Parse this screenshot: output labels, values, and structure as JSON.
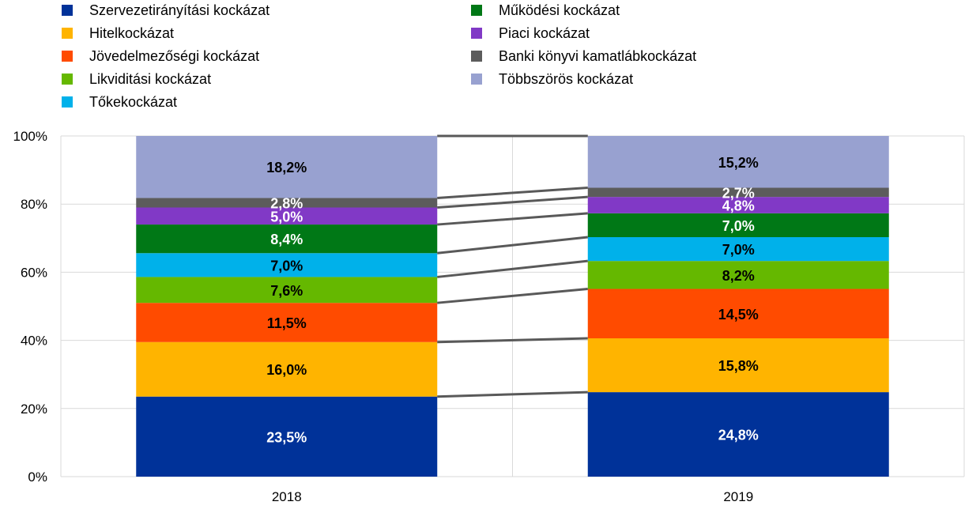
{
  "chart_data": {
    "type": "bar",
    "stacked": true,
    "title": "",
    "xlabel": "",
    "ylabel": "",
    "ylim": [
      0,
      100
    ],
    "categories": [
      "2018",
      "2019"
    ],
    "yticks": [
      "0%",
      "20%",
      "40%",
      "60%",
      "80%",
      "100%"
    ],
    "legend_position": "top",
    "series": [
      {
        "name": "Szervezetirányítási kockázat",
        "color": "#003299",
        "values": [
          23.5,
          24.8
        ],
        "labels": [
          "23,5%",
          "24,8%"
        ],
        "label_color": "#ffffff"
      },
      {
        "name": "Hitelkockázat",
        "color": "#FFB400",
        "values": [
          16.0,
          15.8
        ],
        "labels": [
          "16,0%",
          "15,8%"
        ],
        "label_color": "#000000"
      },
      {
        "name": "Jövedelmezőségi kockázat",
        "color": "#FF4B00",
        "values": [
          11.5,
          14.5
        ],
        "labels": [
          "11,5%",
          "14,5%"
        ],
        "label_color": "#000000"
      },
      {
        "name": "Likviditási kockázat",
        "color": "#65B800",
        "values": [
          7.6,
          8.2
        ],
        "labels": [
          "7,6%",
          "8,2%"
        ],
        "label_color": "#000000"
      },
      {
        "name": "Tőkekockázat",
        "color": "#00B1EA",
        "values": [
          7.0,
          7.0
        ],
        "labels": [
          "7,0%",
          "7,0%"
        ],
        "label_color": "#000000"
      },
      {
        "name": "Működési kockázat",
        "color": "#007816",
        "values": [
          8.4,
          7.0
        ],
        "labels": [
          "8,4%",
          "7,0%"
        ],
        "label_color": "#ffffff"
      },
      {
        "name": "Piaci kockázat",
        "color": "#8139C6",
        "values": [
          5.0,
          4.8
        ],
        "labels": [
          "5,0%",
          "4,8%"
        ],
        "label_color": "#ffffff"
      },
      {
        "name": "Banki könyvi kamatlábkockázat",
        "color": "#5C5C5C",
        "values": [
          2.8,
          2.7
        ],
        "labels": [
          "2,8%",
          "2,7%"
        ],
        "label_color": "#ffffff"
      },
      {
        "name": "Többszörös kockázat",
        "color": "#98A1D0",
        "values": [
          18.2,
          15.2
        ],
        "labels": [
          "18,2%",
          "15,2%"
        ],
        "label_color": "#000000"
      }
    ]
  }
}
